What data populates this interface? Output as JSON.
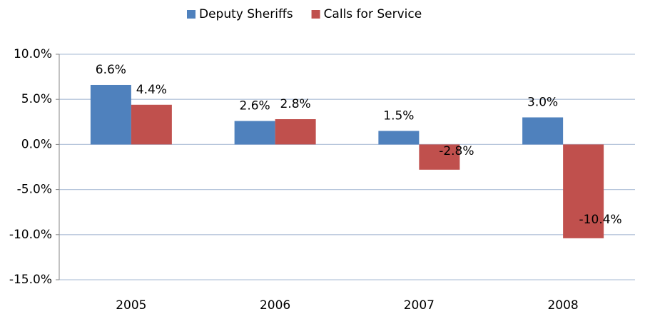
{
  "chart_data": {
    "type": "bar",
    "categories": [
      "2005",
      "2006",
      "2007",
      "2008"
    ],
    "series": [
      {
        "name": "Deputy Sheriffs",
        "color": "#4f81bd",
        "values": [
          6.6,
          2.6,
          1.5,
          3.0
        ],
        "value_labels": [
          "6.6%",
          "2.6%",
          "1.5%",
          "3.0%"
        ]
      },
      {
        "name": "Calls for Service",
        "color": "#c0504d",
        "values": [
          4.4,
          2.8,
          -2.8,
          -10.4
        ],
        "value_labels": [
          "4.4%",
          "2.8%",
          "-2.8%",
          "-10.4%"
        ]
      }
    ],
    "ylim": [
      -15,
      10
    ],
    "yticks": [
      {
        "value": -15,
        "label": "-15.0%"
      },
      {
        "value": -10,
        "label": "-10.0%"
      },
      {
        "value": -5,
        "label": "-5.0%"
      },
      {
        "value": 0,
        "label": "0.0%"
      },
      {
        "value": 5,
        "label": "5.0%"
      },
      {
        "value": 10,
        "label": "10.0%"
      }
    ],
    "grid": true,
    "legend": "top"
  }
}
